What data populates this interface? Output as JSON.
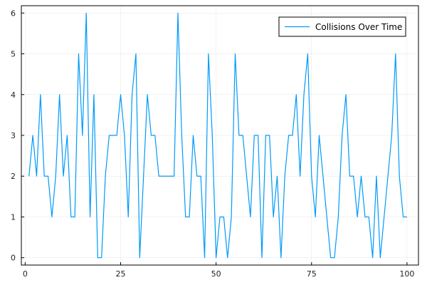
{
  "chart_data": {
    "type": "line",
    "title": "",
    "xlabel": "",
    "ylabel": "",
    "xlim": [
      -1,
      103
    ],
    "ylim": [
      -0.18,
      6.18
    ],
    "xticks": [
      0,
      25,
      50,
      75,
      100
    ],
    "yticks": [
      0,
      1,
      2,
      3,
      4,
      5,
      6
    ],
    "grid": true,
    "legend_position": "top-right",
    "series": [
      {
        "name": "Collisions Over Time",
        "color": "#009AFA",
        "x": [
          1,
          2,
          3,
          4,
          5,
          6,
          7,
          8,
          9,
          10,
          11,
          12,
          13,
          14,
          15,
          16,
          17,
          18,
          19,
          20,
          21,
          22,
          23,
          24,
          25,
          26,
          27,
          28,
          29,
          30,
          31,
          32,
          33,
          34,
          35,
          36,
          37,
          38,
          39,
          40,
          41,
          42,
          43,
          44,
          45,
          46,
          47,
          48,
          49,
          50,
          51,
          52,
          53,
          54,
          55,
          56,
          57,
          58,
          59,
          60,
          61,
          62,
          63,
          64,
          65,
          66,
          67,
          68,
          69,
          70,
          71,
          72,
          73,
          74,
          75,
          76,
          77,
          78,
          79,
          80,
          81,
          82,
          83,
          84,
          85,
          86,
          87,
          88,
          89,
          90,
          91,
          92,
          93,
          94,
          95,
          96,
          97,
          98,
          99,
          100
        ],
        "values": [
          2,
          3,
          2,
          4,
          2,
          2,
          1,
          2,
          4,
          2,
          3,
          1,
          1,
          5,
          3,
          6,
          1,
          4,
          0,
          0,
          2,
          3,
          3,
          3,
          4,
          3,
          1,
          4,
          5,
          0,
          2,
          4,
          3,
          3,
          2,
          2,
          2,
          2,
          2,
          6,
          3,
          1,
          1,
          3,
          2,
          2,
          0,
          5,
          3,
          0,
          1,
          1,
          0,
          1,
          5,
          3,
          3,
          2,
          1,
          3,
          3,
          0,
          3,
          3,
          1,
          2,
          0,
          2,
          3,
          3,
          4,
          2,
          4,
          5,
          2,
          1,
          3,
          2,
          1,
          0,
          0,
          1,
          3,
          4,
          2,
          2,
          1,
          2,
          1,
          1,
          0,
          2,
          0,
          1,
          2,
          3,
          5,
          2,
          1,
          1
        ]
      }
    ]
  }
}
